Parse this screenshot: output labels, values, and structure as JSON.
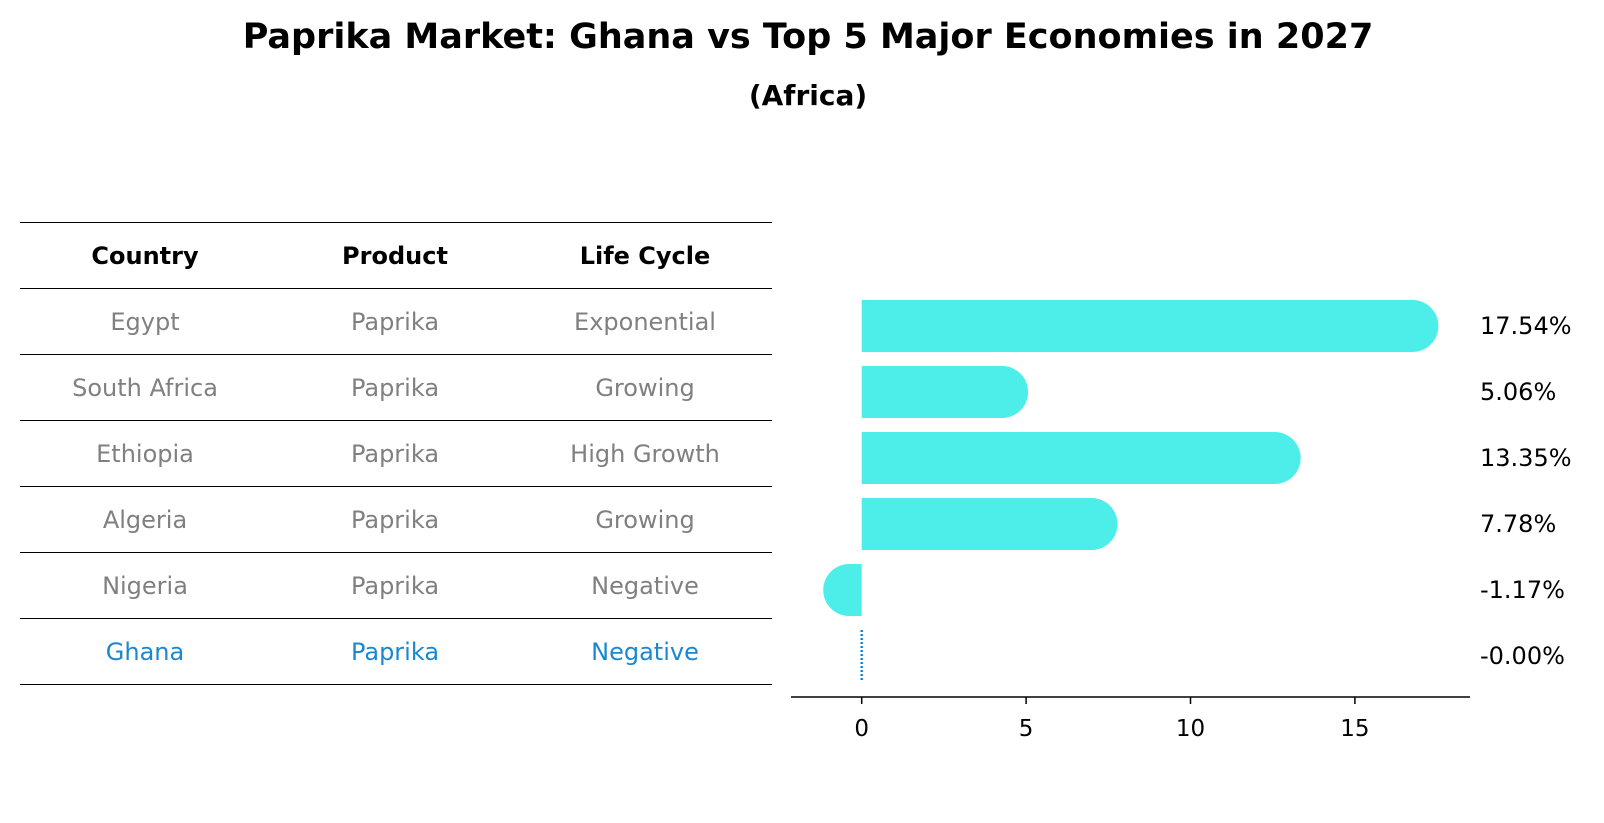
{
  "title": "Paprika Market: Ghana vs Top 5 Major Economies in 2027",
  "subtitle": "(Africa)",
  "table": {
    "headers": [
      "Country",
      "Product",
      "Life Cycle"
    ],
    "rows": [
      [
        "Egypt",
        "Paprika",
        "Exponential"
      ],
      [
        "South Africa",
        "Paprika",
        "Growing"
      ],
      [
        "Ethiopia",
        "Paprika",
        "High Growth"
      ],
      [
        "Algeria",
        "Paprika",
        "Growing"
      ],
      [
        "Nigeria",
        "Paprika",
        "Negative"
      ],
      [
        "Ghana",
        "Paprika",
        "Negative"
      ]
    ],
    "highlight_row": 5
  },
  "colors": {
    "bar": "#4deeea",
    "highlight": "#1a88d0",
    "muted": "#808080"
  },
  "chart_data": {
    "type": "bar",
    "orientation": "horizontal",
    "categories": [
      "Egypt",
      "South Africa",
      "Ethiopia",
      "Algeria",
      "Nigeria",
      "Ghana"
    ],
    "values": [
      17.54,
      5.06,
      13.35,
      7.78,
      -1.17,
      -0.0
    ],
    "data_labels": [
      "17.54%",
      "5.06%",
      "13.35%",
      "7.78%",
      "-1.17%",
      "-0.00%"
    ],
    "xticks": [
      0,
      5,
      10,
      15
    ],
    "xlim": [
      -2.15,
      18.5
    ],
    "title": "Paprika Market: Ghana vs Top 5 Major Economies in 2027",
    "xlabel": "",
    "ylabel": "",
    "grid": false
  }
}
